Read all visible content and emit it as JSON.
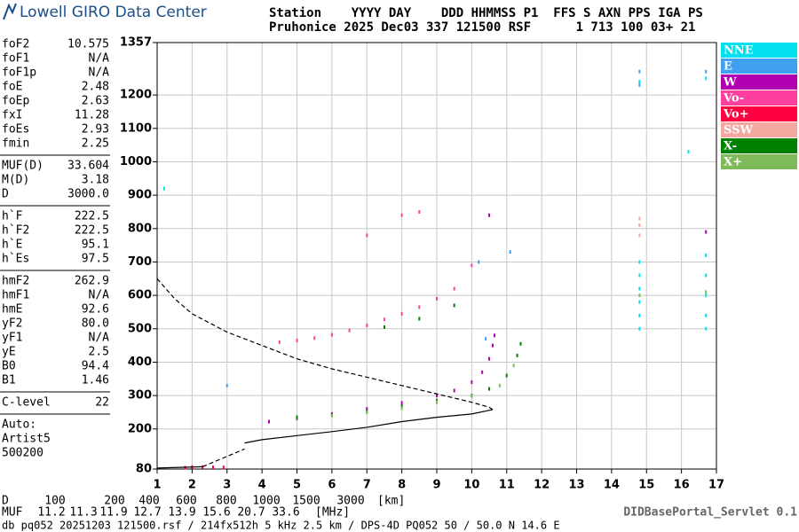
{
  "header": {
    "logo": "Lowell GIRO Data Center",
    "row1": "Station    YYYY DAY    DDD HHMMSS P1  FFS S AXN PPS IGA PS",
    "row2": "Pruhonice 2025 Dec03 337 121500 RSF      1 713 100 03+ 21"
  },
  "params": [
    [
      [
        "foF2",
        "10.575"
      ],
      [
        "foF1",
        "N/A"
      ],
      [
        "foF1p",
        "N/A"
      ],
      [
        "foE",
        "2.48"
      ],
      [
        "foEp",
        "2.63"
      ],
      [
        "fxI",
        "11.28"
      ],
      [
        "foEs",
        "2.93"
      ],
      [
        "fmin",
        "2.25"
      ]
    ],
    [
      [
        "MUF(D)",
        "33.604"
      ],
      [
        "M(D)",
        "3.18"
      ],
      [
        "D",
        "3000.0"
      ]
    ],
    [
      [
        "h`F",
        "222.5"
      ],
      [
        "h`F2",
        "222.5"
      ],
      [
        "h`E",
        "95.1"
      ],
      [
        "h`Es",
        "97.5"
      ]
    ],
    [
      [
        "hmF2",
        "262.9"
      ],
      [
        "hmF1",
        "N/A"
      ],
      [
        "hmE",
        "92.6"
      ],
      [
        "yF2",
        "80.0"
      ],
      [
        "yF1",
        "N/A"
      ],
      [
        "yE",
        "2.5"
      ],
      [
        "B0",
        "94.4"
      ],
      [
        "B1",
        "1.46"
      ]
    ],
    [
      [
        "C-level",
        "22"
      ]
    ]
  ],
  "notes": [
    "Auto:",
    "Artist5",
    "500200"
  ],
  "muf_table": {
    "d_label": "D",
    "d": [
      100,
      200,
      400,
      600,
      800,
      1000,
      1500,
      3000
    ],
    "d_unit": "[km]",
    "muf_label": "MUF",
    "muf": [
      11.2,
      11.3,
      11.9,
      12.7,
      13.9,
      15.6,
      20.7,
      33.6
    ],
    "muf_unit": "[MHz]"
  },
  "footer": "db pq052 20251203 121500.rsf / 214fx512h 5 kHz 2.5 km / DPS-4D PQ052 50 / 50.0 N 14.6 E",
  "servlet": "DIDBasePortal_Servlet 0.1",
  "chart_data": {
    "type": "scatter",
    "xlim": [
      1,
      17
    ],
    "ylim": [
      80,
      1357
    ],
    "xticks": [
      1,
      2,
      3,
      4,
      5,
      6,
      7,
      8,
      9,
      10,
      11,
      12,
      13,
      14,
      15,
      16,
      17
    ],
    "yticks": [
      80,
      200,
      300,
      400,
      500,
      600,
      700,
      800,
      900,
      1000,
      1100,
      1200,
      1357
    ],
    "grid": true,
    "series": [
      {
        "name": "NNE",
        "color": "#00e0f0",
        "x": [
          14.8,
          14.8,
          14.8,
          14.8,
          14.8,
          14.8,
          16.7,
          16.7,
          16.7,
          16.7,
          16.7,
          14.8,
          16.7,
          1.2,
          16.2
        ],
        "values": [
          500,
          540,
          580,
          620,
          660,
          700,
          500,
          540,
          600,
          660,
          720,
          1240,
          1250,
          920,
          1030
        ]
      },
      {
        "name": "E",
        "color": "#40a0f0",
        "x": [
          14.8,
          14.8,
          16.7,
          10.4,
          10.2,
          3.0,
          11.1
        ],
        "values": [
          1270,
          1230,
          1270,
          470,
          700,
          330,
          730
        ]
      },
      {
        "name": "W",
        "color": "#b000b0",
        "x": [
          4.2,
          5,
          6,
          7,
          8,
          9,
          9.5,
          10,
          10.3,
          10.5,
          10.6,
          10.65,
          16.7,
          10.5
        ],
        "values": [
          222,
          232,
          245,
          260,
          278,
          300,
          315,
          340,
          370,
          410,
          450,
          480,
          790,
          840
        ]
      },
      {
        "name": "Vo-",
        "color": "#ff3fa0",
        "x": [
          4.5,
          5,
          5.5,
          6,
          6.5,
          7,
          7.5,
          8,
          8.5,
          9,
          9.5,
          10,
          7,
          8,
          8.5
        ],
        "values": [
          460,
          465,
          472,
          482,
          495,
          510,
          528,
          545,
          565,
          590,
          620,
          690,
          780,
          840,
          850
        ]
      },
      {
        "name": "Vo+",
        "color": "#ff0040",
        "x": [
          1.8,
          2.0,
          2.3,
          2.6,
          2.9
        ],
        "values": [
          84,
          86,
          86,
          85,
          85
        ]
      },
      {
        "name": "SSW",
        "color": "#f4a8a0",
        "x": [
          14.8,
          14.8,
          14.8
        ],
        "values": [
          780,
          810,
          830
        ]
      },
      {
        "name": "X-",
        "color": "#008000",
        "x": [
          5,
          6,
          7,
          8,
          9,
          10,
          10.5,
          11,
          11.3,
          11.4,
          7.5,
          8.5,
          9.5
        ],
        "values": [
          235,
          242,
          252,
          268,
          285,
          300,
          320,
          360,
          420,
          455,
          505,
          530,
          570
        ]
      },
      {
        "name": "X+",
        "color": "#7fba5a",
        "x": [
          6,
          7,
          8,
          9,
          10,
          10.8,
          11.2,
          14.8,
          16.7
        ],
        "values": [
          240,
          250,
          262,
          280,
          298,
          330,
          390,
          600,
          610
        ]
      }
    ],
    "profiles": [
      {
        "style": "dashed",
        "x": [
          1,
          1.5,
          2,
          3,
          4,
          5,
          6,
          7,
          8,
          9,
          10,
          10.5,
          10.6
        ],
        "values": [
          650,
          590,
          545,
          490,
          450,
          410,
          380,
          355,
          330,
          305,
          280,
          265,
          258
        ]
      },
      {
        "style": "solid",
        "x": [
          10.6,
          10,
          9,
          8,
          7,
          6,
          5,
          4,
          3.5
        ],
        "values": [
          258,
          245,
          235,
          222,
          205,
          192,
          180,
          168,
          158
        ]
      },
      {
        "style": "dashed",
        "x": [
          2.3,
          3,
          3.5
        ],
        "values": [
          87,
          118,
          140
        ]
      },
      {
        "style": "solid",
        "x": [
          1,
          2.3
        ],
        "values": [
          83,
          87
        ]
      }
    ]
  }
}
